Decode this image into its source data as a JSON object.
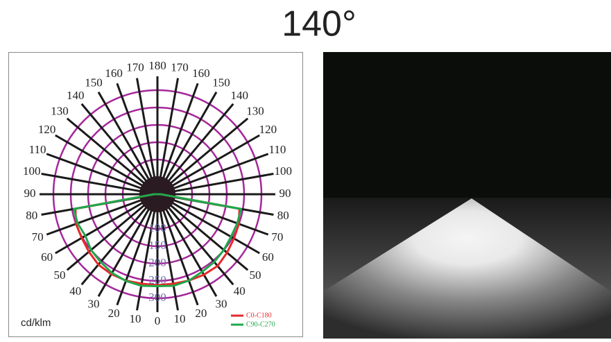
{
  "chart_data": {
    "type": "polar",
    "title": "140°",
    "unit_label": "cd/klm",
    "angles": [
      0,
      10,
      20,
      30,
      40,
      50,
      60,
      70,
      80,
      90,
      100,
      110,
      120,
      130,
      140,
      150,
      160,
      170,
      180
    ],
    "rlim": [
      0,
      300
    ],
    "rticks": [
      100,
      150,
      200,
      250,
      300
    ],
    "series": [
      {
        "name": "C0-C180",
        "color": "#e8282a",
        "values_c0": [
          262,
          262,
          265,
          268,
          270,
          262,
          255,
          250,
          240,
          10,
          0,
          0,
          0,
          0,
          0,
          0,
          0,
          0,
          0
        ],
        "values_c180": [
          262,
          262,
          265,
          266,
          265,
          258,
          252,
          250,
          240,
          10,
          0,
          0,
          0,
          0,
          0,
          0,
          0,
          0,
          0
        ]
      },
      {
        "name": "C90-C270",
        "color": "#1fa84a",
        "values_c0": [
          265,
          268,
          265,
          258,
          255,
          250,
          245,
          245,
          245,
          10,
          0,
          0,
          0,
          0,
          0,
          0,
          0,
          0,
          0
        ],
        "values_c180": [
          265,
          268,
          266,
          262,
          255,
          250,
          240,
          245,
          245,
          10,
          0,
          0,
          0,
          0,
          0,
          0,
          0,
          0,
          0
        ]
      }
    ]
  }
}
